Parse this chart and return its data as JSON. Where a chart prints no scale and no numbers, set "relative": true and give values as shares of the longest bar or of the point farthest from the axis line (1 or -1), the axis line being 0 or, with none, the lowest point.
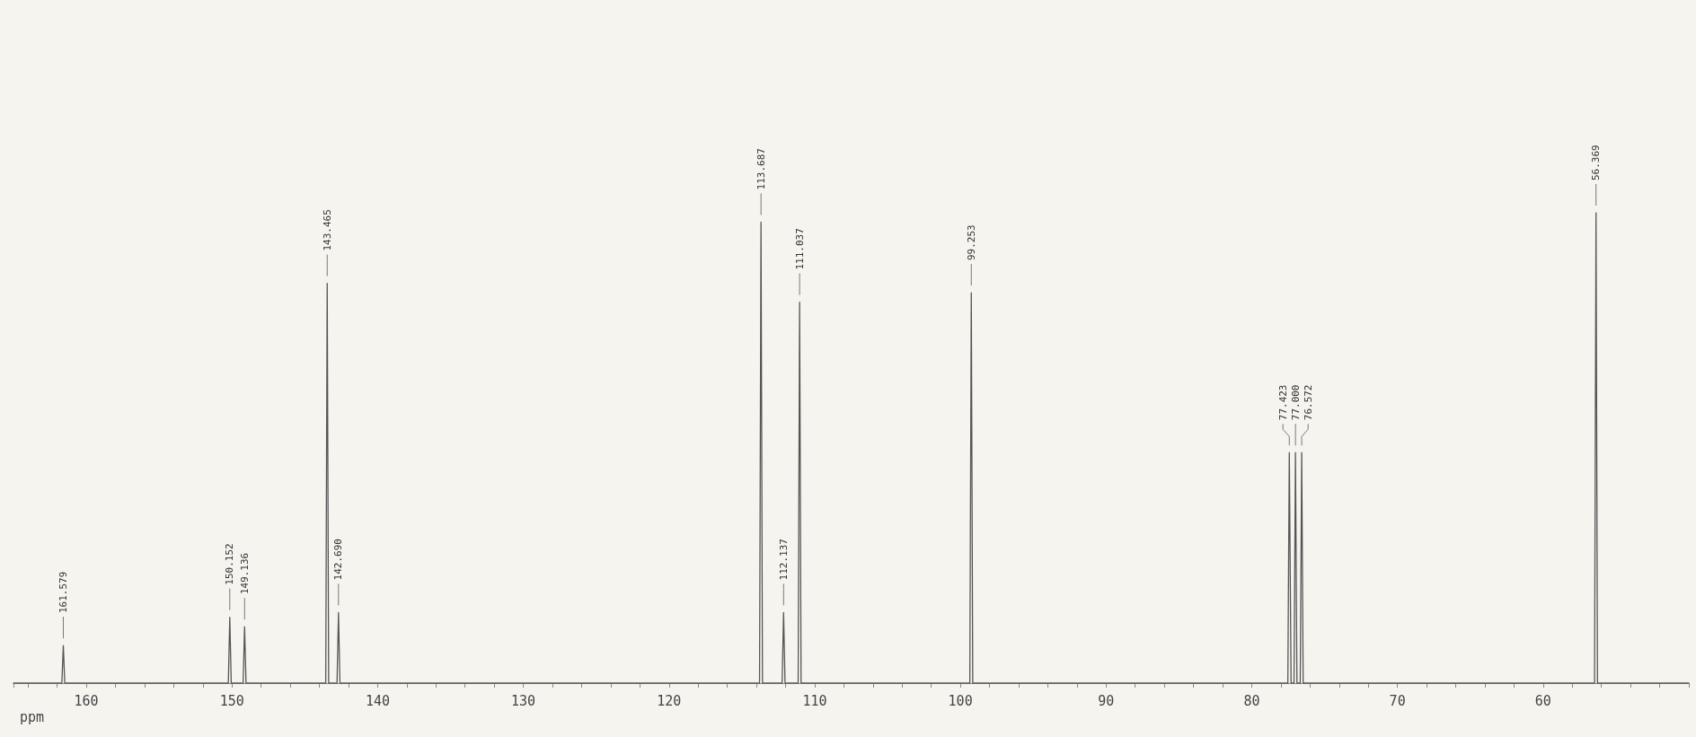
{
  "chart_data": {
    "type": "line",
    "relative": true,
    "xlabel": "ppm",
    "xlim": [
      165,
      50
    ],
    "xticks": [
      {
        "value": 164,
        "label": null
      },
      {
        "value": 162,
        "label": null
      },
      160,
      {
        "value": 158,
        "label": null
      },
      {
        "value": 156,
        "label": null
      },
      {
        "value": 154,
        "label": null
      },
      {
        "value": 152,
        "label": null
      },
      150,
      {
        "value": 148,
        "label": null
      },
      {
        "value": 146,
        "label": null
      },
      {
        "value": 144,
        "label": null
      },
      {
        "value": 142,
        "label": null
      },
      140,
      {
        "value": 138,
        "label": null
      },
      {
        "value": 136,
        "label": null
      },
      {
        "value": 134,
        "label": null
      },
      {
        "value": 132,
        "label": null
      },
      130,
      {
        "value": 128,
        "label": null
      },
      {
        "value": 126,
        "label": null
      },
      {
        "value": 124,
        "label": null
      },
      {
        "value": 122,
        "label": null
      },
      120,
      {
        "value": 118,
        "label": null
      },
      {
        "value": 116,
        "label": null
      },
      {
        "value": 114,
        "label": null
      },
      {
        "value": 112,
        "label": null
      },
      110,
      {
        "value": 108,
        "label": null
      },
      {
        "value": 106,
        "label": null
      },
      {
        "value": 104,
        "label": null
      },
      {
        "value": 102,
        "label": null
      },
      100,
      {
        "value": 98,
        "label": null
      },
      {
        "value": 96,
        "label": null
      },
      {
        "value": 94,
        "label": null
      },
      {
        "value": 92,
        "label": null
      },
      90,
      {
        "value": 88,
        "label": null
      },
      {
        "value": 86,
        "label": null
      },
      {
        "value": 84,
        "label": null
      },
      {
        "value": 82,
        "label": null
      },
      80,
      {
        "value": 78,
        "label": null
      },
      {
        "value": 76,
        "label": null
      },
      {
        "value": 74,
        "label": null
      },
      {
        "value": 72,
        "label": null
      },
      70,
      {
        "value": 68,
        "label": null
      },
      {
        "value": 66,
        "label": null
      },
      {
        "value": 64,
        "label": null
      },
      {
        "value": 62,
        "label": null
      },
      60,
      {
        "value": 58,
        "label": null
      },
      {
        "value": 56,
        "label": null
      },
      {
        "value": 54,
        "label": null
      },
      {
        "value": 52,
        "label": null
      },
      {
        "value": 50,
        "label": null
      }
    ],
    "marker": "none",
    "line_style": "solid",
    "series": [
      {
        "color": "#555555",
        "x": [
          165,
          161.679,
          161.579,
          161.479,
          150.252,
          150.152,
          150.052,
          149.236,
          149.136,
          149.036,
          143.565,
          143.465,
          143.365,
          142.79,
          142.69,
          142.59,
          113.787,
          113.687,
          113.587,
          112.237,
          112.137,
          112.037,
          111.137,
          111.037,
          110.937,
          99.353,
          99.253,
          99.153,
          77.523,
          77.423,
          77.3,
          77.1,
          77.0,
          76.9,
          76.672,
          76.572,
          76.472,
          56.469,
          56.369,
          56.269,
          50
        ],
        "values": [
          0,
          0,
          0.08,
          0,
          0,
          0.14,
          0,
          0,
          0.12,
          0,
          0,
          0.85,
          0,
          0,
          0.15,
          0,
          0,
          0.98,
          0,
          0,
          0.15,
          0,
          0,
          0.81,
          0,
          0,
          0.83,
          0,
          0,
          0.49,
          0,
          0,
          0.49,
          0,
          0,
          0.49,
          0,
          0,
          1,
          0,
          0
        ]
      }
    ],
    "annotations": [
      {
        "text": "161.579",
        "x": 161.579,
        "y": 0.08
      },
      {
        "text": "150.152",
        "x": 150.152,
        "y": 0.14
      },
      {
        "text": "149.136",
        "x": 149.136,
        "y": 0.12
      },
      {
        "text": "143.465",
        "x": 143.465,
        "y": 0.85
      },
      {
        "text": "142.690",
        "x": 142.69,
        "y": 0.15
      },
      {
        "text": "113.687",
        "x": 113.687,
        "y": 0.98
      },
      {
        "text": "112.137",
        "x": 112.137,
        "y": 0.15
      },
      {
        "text": "111.037",
        "x": 111.037,
        "y": 0.81
      },
      {
        "text": "99.253",
        "x": 99.253,
        "y": 0.83
      },
      {
        "text": "77.423",
        "x": 77.423,
        "y": 0.49
      },
      {
        "text": "77.000",
        "x": 77.0,
        "y": 0.49
      },
      {
        "text": "76.572",
        "x": 76.572,
        "y": 0.49
      },
      {
        "text": "56.369",
        "x": 56.369,
        "y": 1
      }
    ]
  }
}
